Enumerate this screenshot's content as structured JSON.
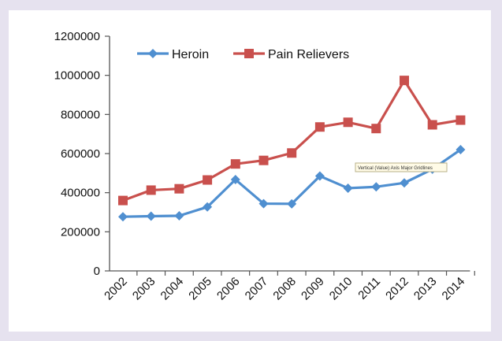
{
  "chart_data": {
    "type": "line",
    "title": "",
    "xlabel": "",
    "ylabel": "",
    "categories": [
      "2002",
      "2003",
      "2004",
      "2005",
      "2006",
      "2007",
      "2008",
      "2009",
      "2010",
      "2011",
      "2012",
      "2013",
      "2014"
    ],
    "ylim": [
      0,
      1200000
    ],
    "yticks": [
      "0",
      "200000",
      "400000",
      "600000",
      "800000",
      "1000000",
      "1200000"
    ],
    "grid": false,
    "legend_position": "top",
    "series": [
      {
        "name": "Heroin",
        "color": "#4f8fd0",
        "marker": "diamond",
        "values": [
          277000,
          280000,
          282000,
          327000,
          467000,
          344000,
          343000,
          485000,
          423000,
          430000,
          450000,
          520000,
          620000
        ]
      },
      {
        "name": "Pain Relievers",
        "color": "#c9504d",
        "marker": "square",
        "values": [
          360000,
          413000,
          420000,
          465000,
          547000,
          565000,
          603000,
          736000,
          760000,
          728000,
          974000,
          747000,
          771000
        ]
      }
    ],
    "annotations": [
      {
        "text": "Vertical (Value) Axis Major Gridlines",
        "type": "tooltip"
      }
    ]
  }
}
